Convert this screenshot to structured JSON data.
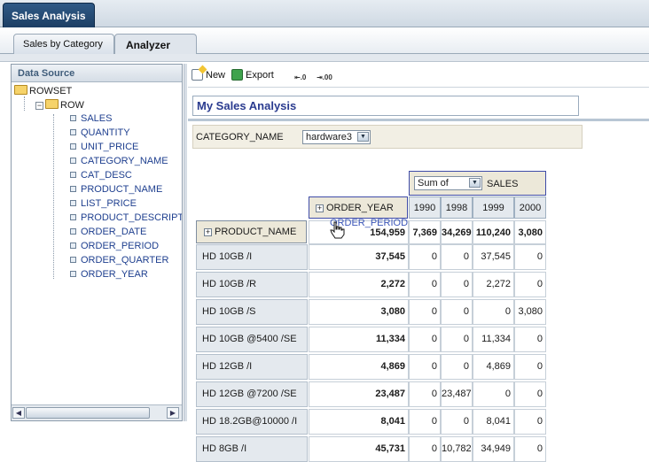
{
  "window": {
    "title": "Sales Analysis"
  },
  "tabs": [
    {
      "label": "Sales by Category",
      "active": false
    },
    {
      "label": "Analyzer",
      "active": true
    }
  ],
  "data_source": {
    "header": "Data Source",
    "root": "ROWSET",
    "node": "ROW",
    "fields": [
      "SALES",
      "QUANTITY",
      "UNIT_PRICE",
      "CATEGORY_NAME",
      "CAT_DESC",
      "PRODUCT_NAME",
      "LIST_PRICE",
      "PRODUCT_DESCRIPTIO",
      "ORDER_DATE",
      "ORDER_PERIOD",
      "ORDER_QUARTER",
      "ORDER_YEAR"
    ]
  },
  "toolbar": {
    "new_label": "New",
    "export_label": "Export"
  },
  "report": {
    "title": "My Sales Analysis"
  },
  "page_item": {
    "label": "CATEGORY_NAME",
    "value": "hardware3"
  },
  "pivot": {
    "measure_agg": "Sum of",
    "measure_field": "SALES",
    "column_field": "ORDER_YEAR",
    "row_field": "PRODUCT_NAME",
    "drag_label": "ORDER_PERIOD",
    "years": [
      "1990",
      "1998",
      "1999",
      "2000"
    ],
    "totals_row": {
      "total": "154,959",
      "values": [
        "7,369",
        "34,269",
        "110,240",
        "3,080"
      ]
    },
    "rows": [
      {
        "label": "HD 10GB /I",
        "total": "37,545",
        "values": [
          "0",
          "0",
          "37,545",
          "0"
        ]
      },
      {
        "label": "HD 10GB /R",
        "total": "2,272",
        "values": [
          "0",
          "0",
          "2,272",
          "0"
        ]
      },
      {
        "label": "HD 10GB /S",
        "total": "3,080",
        "values": [
          "0",
          "0",
          "0",
          "3,080"
        ]
      },
      {
        "label": "HD 10GB @5400 /SE",
        "total": "11,334",
        "values": [
          "0",
          "0",
          "11,334",
          "0"
        ]
      },
      {
        "label": "HD 12GB /I",
        "total": "4,869",
        "values": [
          "0",
          "0",
          "4,869",
          "0"
        ]
      },
      {
        "label": "HD 12GB @7200 /SE",
        "total": "23,487",
        "values": [
          "0",
          "23,487",
          "0",
          "0"
        ]
      },
      {
        "label": "HD 18.2GB@10000 /I",
        "total": "8,041",
        "values": [
          "0",
          "0",
          "8,041",
          "0"
        ]
      },
      {
        "label": "HD 8GB /I",
        "total": "45,731",
        "values": [
          "0",
          "10,782",
          "34,949",
          "0"
        ]
      }
    ]
  },
  "colors": {
    "title_tab": "#1c3d63",
    "header_bg": "#ece8d9",
    "accent_border": "#3f4ca8",
    "title_text": "#2a3b8f"
  }
}
